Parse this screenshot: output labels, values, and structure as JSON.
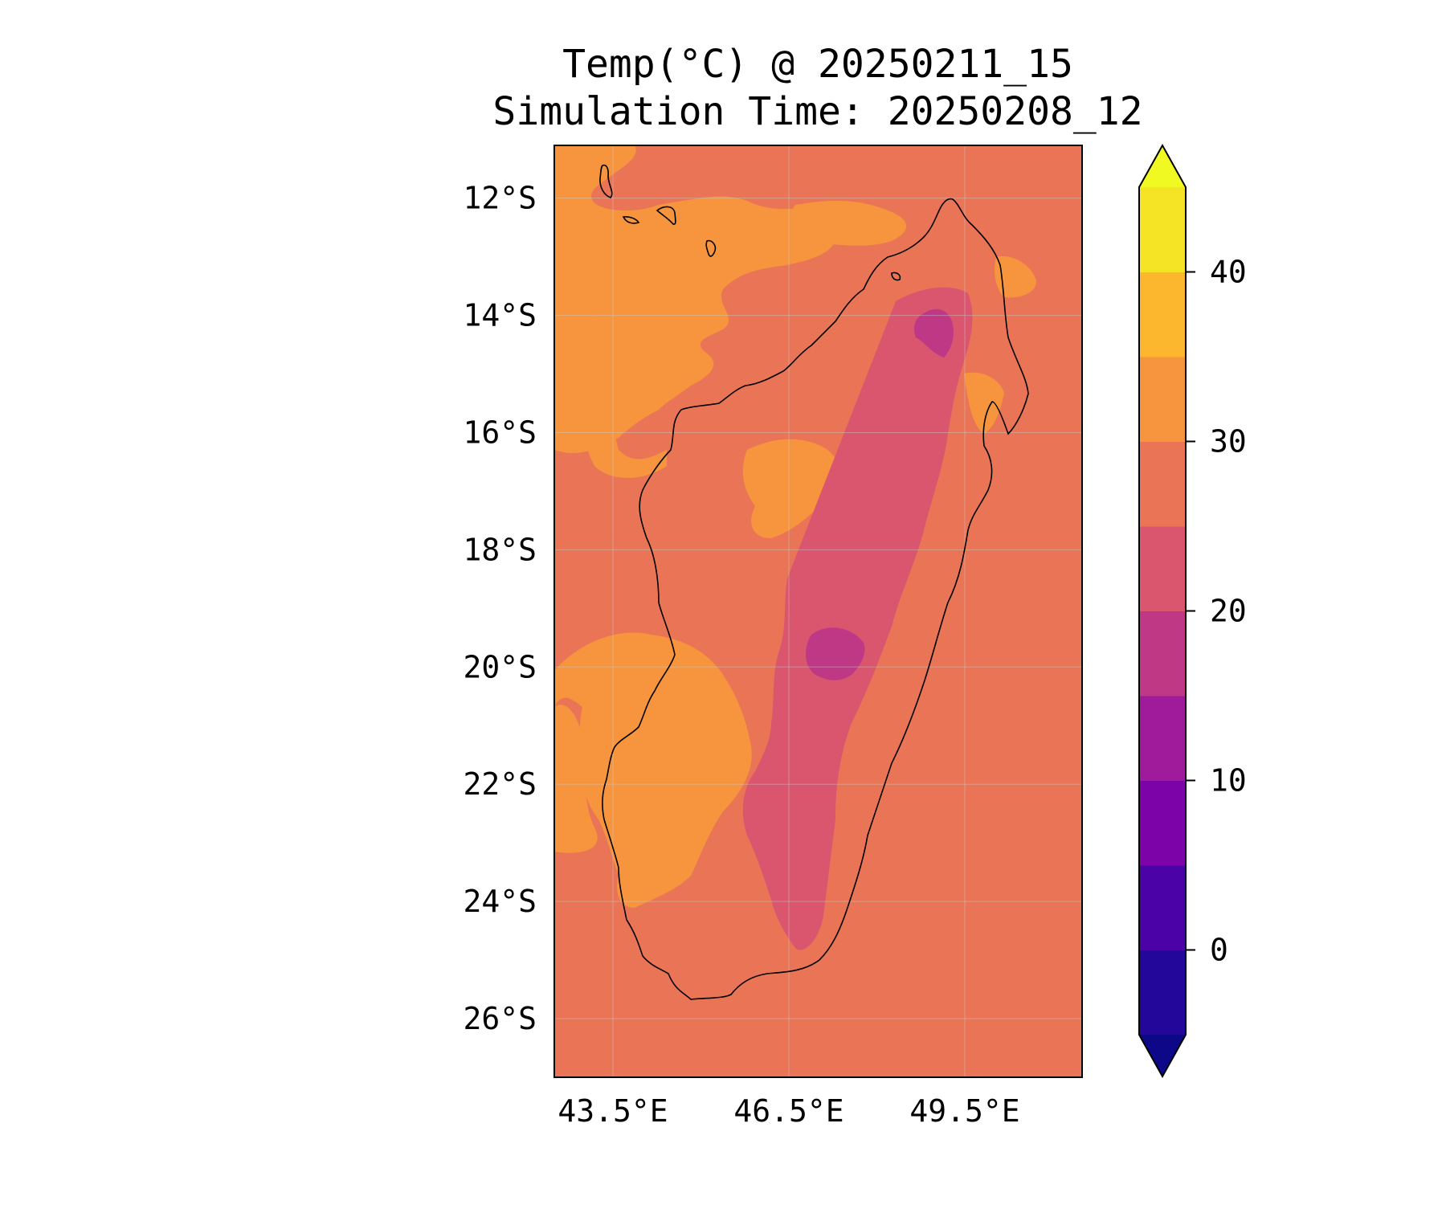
{
  "title": {
    "line1": "Temp(°C) @ 20250211_15",
    "line2": "Simulation Time: 20250208_12"
  },
  "map": {
    "region": "Madagascar",
    "background_color": "#EA7556",
    "lat_ticks": [
      "12°S",
      "14°S",
      "16°S",
      "18°S",
      "20°S",
      "22°S",
      "24°S",
      "26°S"
    ],
    "lat_tick_values": [
      -12,
      -14,
      -16,
      -18,
      -20,
      -22,
      -24,
      -26
    ],
    "lon_ticks": [
      "43.5°E",
      "46.5°E",
      "49.5°E"
    ],
    "lon_tick_values": [
      43.5,
      46.5,
      49.5
    ],
    "lat_range": [
      -27,
      -11.1
    ],
    "lon_range": [
      42.5,
      51.5
    ],
    "gridlines": true
  },
  "colorbar": {
    "ticks": [
      "0",
      "10",
      "20",
      "30",
      "40"
    ],
    "tick_values": [
      0,
      10,
      20,
      30,
      40
    ],
    "range": [
      -5,
      45
    ],
    "extend": "both",
    "levels": [
      {
        "min": -5,
        "max": 0,
        "color": "#23079A"
      },
      {
        "min": 0,
        "max": 5,
        "color": "#4B03A8"
      },
      {
        "min": 5,
        "max": 10,
        "color": "#7B03A8"
      },
      {
        "min": 10,
        "max": 15,
        "color": "#A01A9C"
      },
      {
        "min": 15,
        "max": 20,
        "color": "#BF3886"
      },
      {
        "min": 20,
        "max": 25,
        "color": "#D9566E"
      },
      {
        "min": 25,
        "max": 30,
        "color": "#EA7556"
      },
      {
        "min": 30,
        "max": 35,
        "color": "#F7953F"
      },
      {
        "min": 35,
        "max": 40,
        "color": "#FDB72E"
      },
      {
        "min": 40,
        "max": 45,
        "color": "#F5E325"
      }
    ],
    "under_color": "#0D0887",
    "over_color": "#F0F921"
  }
}
